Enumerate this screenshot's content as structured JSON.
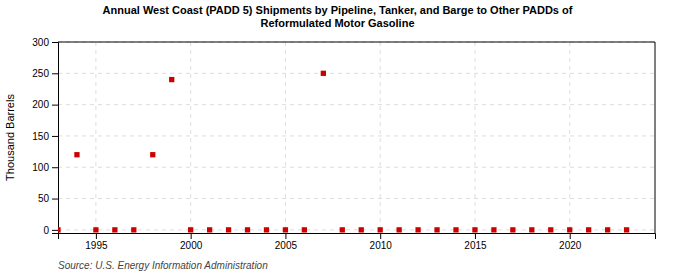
{
  "chart_data": {
    "type": "scatter",
    "title": "Annual West Coast (PADD 5) Shipments by Pipeline, Tanker, and Barge to Other PADDs of\nReformulated Motor Gasoline",
    "ylabel": "Thousand Barrels",
    "source": "Source: U.S. Energy Information Administration",
    "x": [
      1993,
      1994,
      1995,
      1996,
      1997,
      1998,
      1999,
      2000,
      2001,
      2002,
      2003,
      2004,
      2005,
      2006,
      2007,
      2008,
      2009,
      2010,
      2011,
      2012,
      2013,
      2014,
      2015,
      2016,
      2017,
      2018,
      2019,
      2020,
      2021,
      2022,
      2023
    ],
    "values": [
      0,
      120,
      0,
      0,
      0,
      120,
      240,
      0,
      0,
      0,
      0,
      0,
      0,
      0,
      250,
      0,
      0,
      0,
      0,
      0,
      0,
      0,
      0,
      0,
      0,
      0,
      0,
      0,
      0,
      0,
      0
    ],
    "color": "#cc0000",
    "marker": "square",
    "xlim": [
      1993.0,
      2024.5
    ],
    "ylim": [
      -5,
      300
    ],
    "xticks": [
      1995,
      2000,
      2005,
      2010,
      2015,
      2020
    ],
    "yticks": [
      0,
      50,
      100,
      150,
      200,
      250,
      300
    ],
    "grid": true
  }
}
